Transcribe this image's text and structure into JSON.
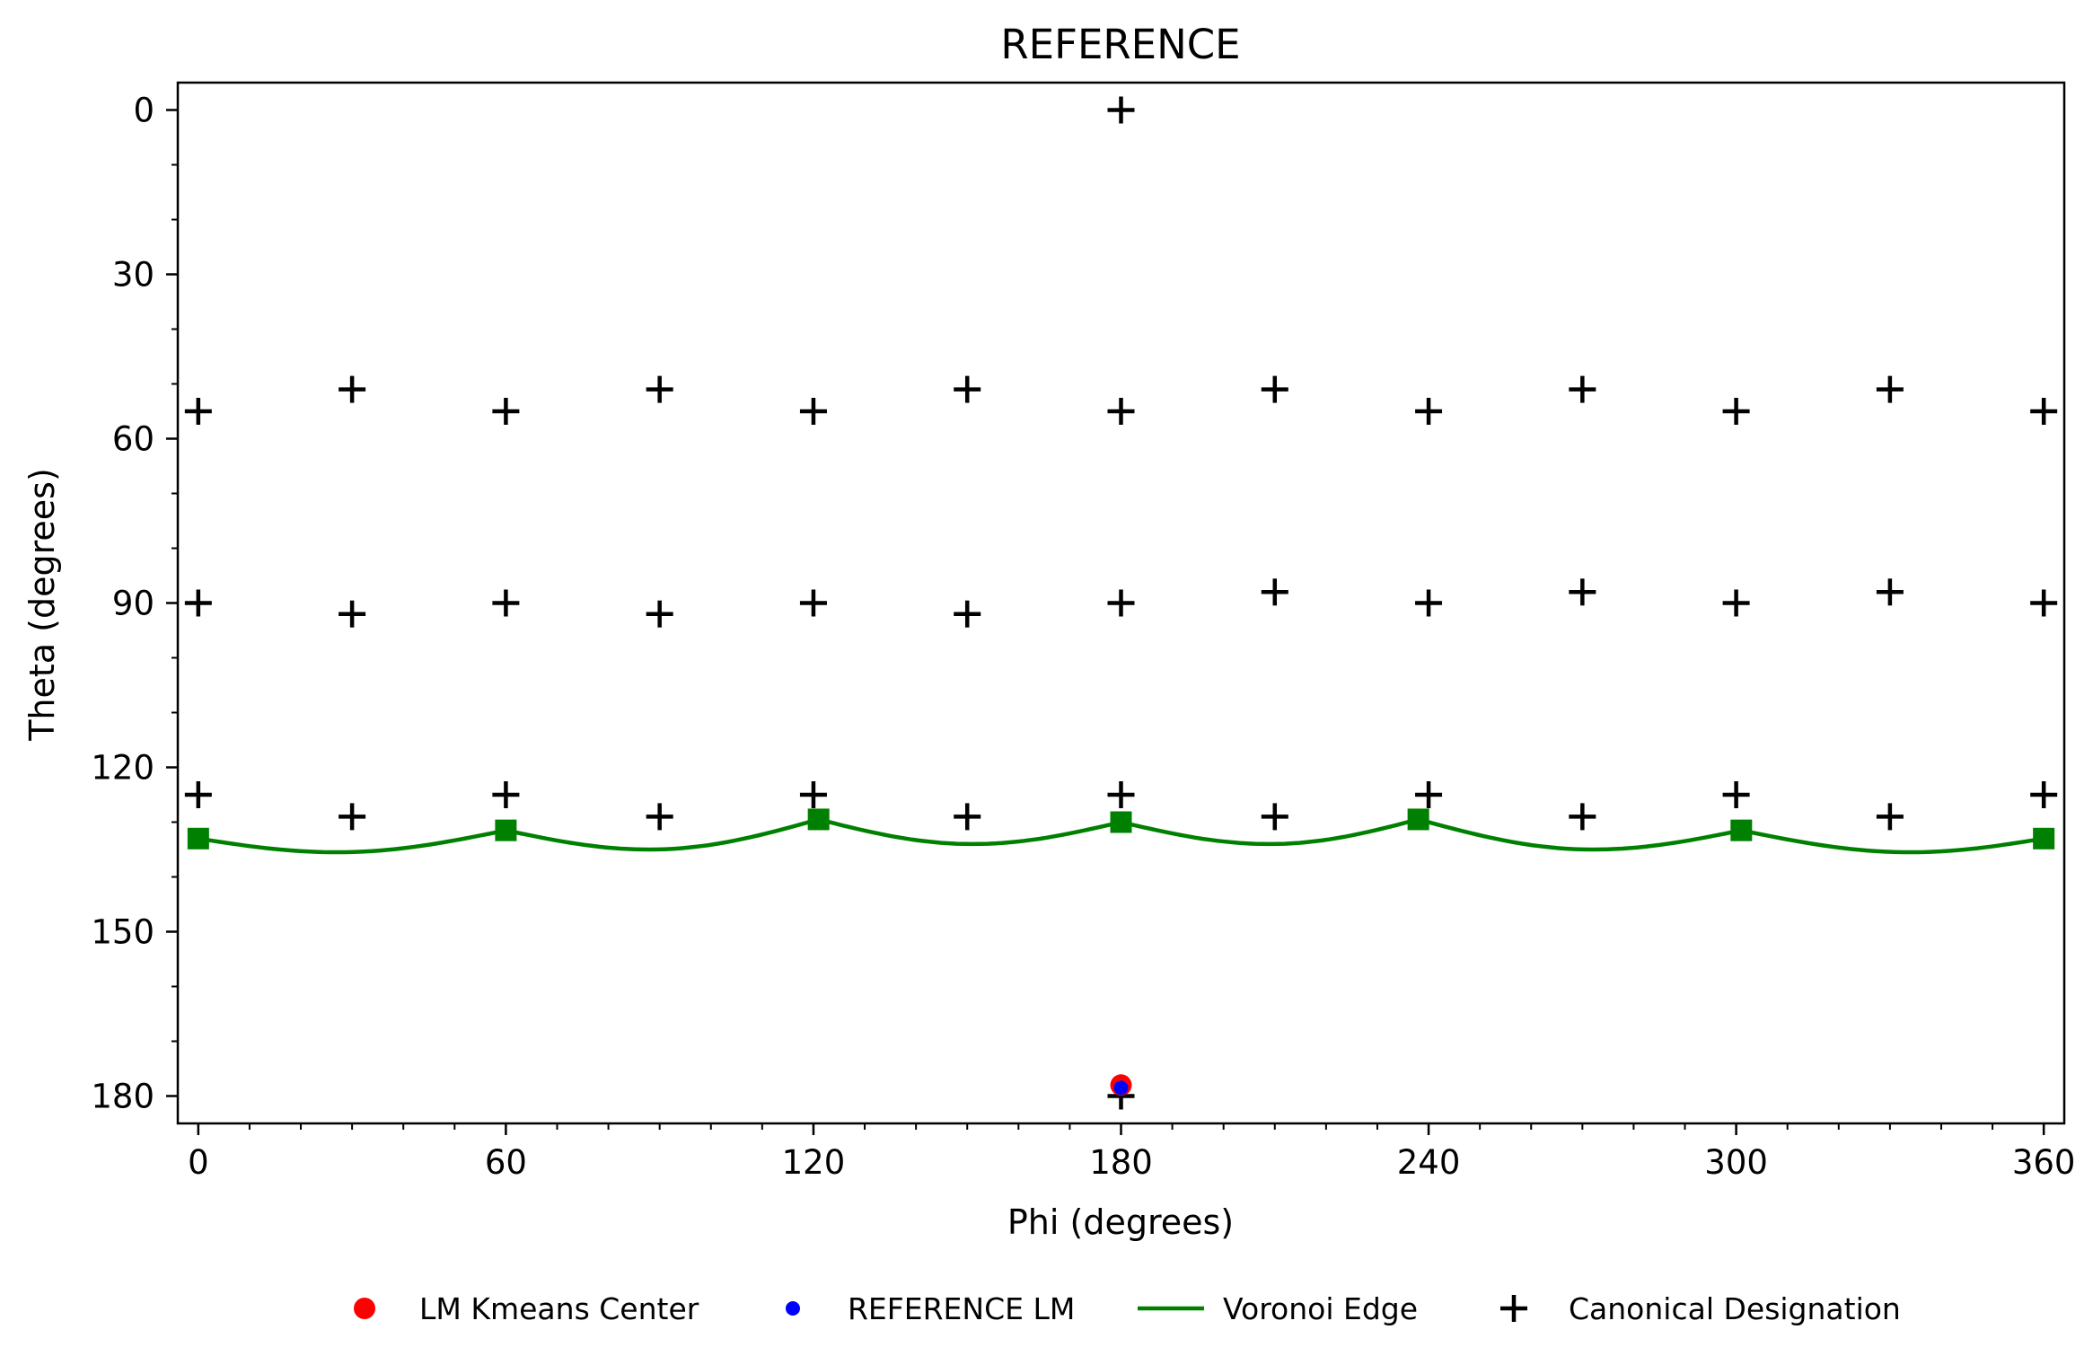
{
  "chart_data": {
    "type": "scatter",
    "title": "REFERENCE",
    "xlabel": "Phi (degrees)",
    "ylabel": "Theta (degrees)",
    "xlim": [
      -4,
      364
    ],
    "ylim": [
      185,
      -5
    ],
    "y_inverted": true,
    "grid": false,
    "x_ticks": [
      0,
      60,
      120,
      180,
      240,
      300,
      360
    ],
    "x_tick_labels": [
      "0",
      "60",
      "120",
      "180",
      "240",
      "300",
      "360"
    ],
    "y_ticks": [
      0,
      30,
      60,
      90,
      120,
      150,
      180
    ],
    "y_tick_labels": [
      "0",
      "30",
      "60",
      "90",
      "120",
      "150",
      "180"
    ],
    "x_minor_step": 10,
    "y_minor_step": 10,
    "legend_position": "bottom-center",
    "legend": [
      {
        "label": "LM Kmeans Center",
        "marker": "circle",
        "color": "#ff0000"
      },
      {
        "label": "REFERENCE LM",
        "marker": "small-circle",
        "color": "#0000ff"
      },
      {
        "label": "Voronoi Edge",
        "marker": "line",
        "color": "#008000"
      },
      {
        "label": "Canonical Designation",
        "marker": "plus",
        "color": "#000000"
      }
    ],
    "series": [
      {
        "name": "LM Kmeans Center",
        "color": "#ff0000",
        "points": [
          [
            180,
            178
          ]
        ]
      },
      {
        "name": "REFERENCE LM",
        "color": "#0000ff",
        "points": [
          [
            180,
            178.5
          ]
        ]
      },
      {
        "name": "Voronoi Edge",
        "color": "#008000",
        "vertices": [
          [
            0,
            133
          ],
          [
            60,
            131.5
          ],
          [
            121,
            129.5
          ],
          [
            180,
            130
          ],
          [
            238,
            129.5
          ],
          [
            301,
            131.5
          ],
          [
            360,
            133
          ]
        ],
        "arc_bottoms": [
          [
            27,
            135.5
          ],
          [
            88,
            135
          ],
          [
            151,
            134
          ],
          [
            209,
            134
          ],
          [
            272,
            135
          ],
          [
            334,
            135.5
          ]
        ]
      },
      {
        "name": "Canonical Designation",
        "color": "#000000",
        "points": [
          [
            180,
            0
          ],
          [
            0,
            55
          ],
          [
            30,
            51
          ],
          [
            60,
            55
          ],
          [
            90,
            51
          ],
          [
            120,
            55
          ],
          [
            150,
            51
          ],
          [
            180,
            55
          ],
          [
            210,
            51
          ],
          [
            240,
            55
          ],
          [
            270,
            51
          ],
          [
            300,
            55
          ],
          [
            330,
            51
          ],
          [
            360,
            55
          ],
          [
            0,
            90
          ],
          [
            30,
            92
          ],
          [
            60,
            90
          ],
          [
            90,
            92
          ],
          [
            120,
            90
          ],
          [
            150,
            92
          ],
          [
            180,
            90
          ],
          [
            210,
            88
          ],
          [
            240,
            90
          ],
          [
            270,
            88
          ],
          [
            300,
            90
          ],
          [
            330,
            88
          ],
          [
            360,
            90
          ],
          [
            0,
            125
          ],
          [
            30,
            129
          ],
          [
            60,
            125
          ],
          [
            90,
            129
          ],
          [
            120,
            125
          ],
          [
            150,
            129
          ],
          [
            180,
            125
          ],
          [
            210,
            129
          ],
          [
            240,
            125
          ],
          [
            270,
            129
          ],
          [
            300,
            125
          ],
          [
            330,
            129
          ],
          [
            360,
            125
          ],
          [
            180,
            180
          ]
        ]
      }
    ]
  }
}
